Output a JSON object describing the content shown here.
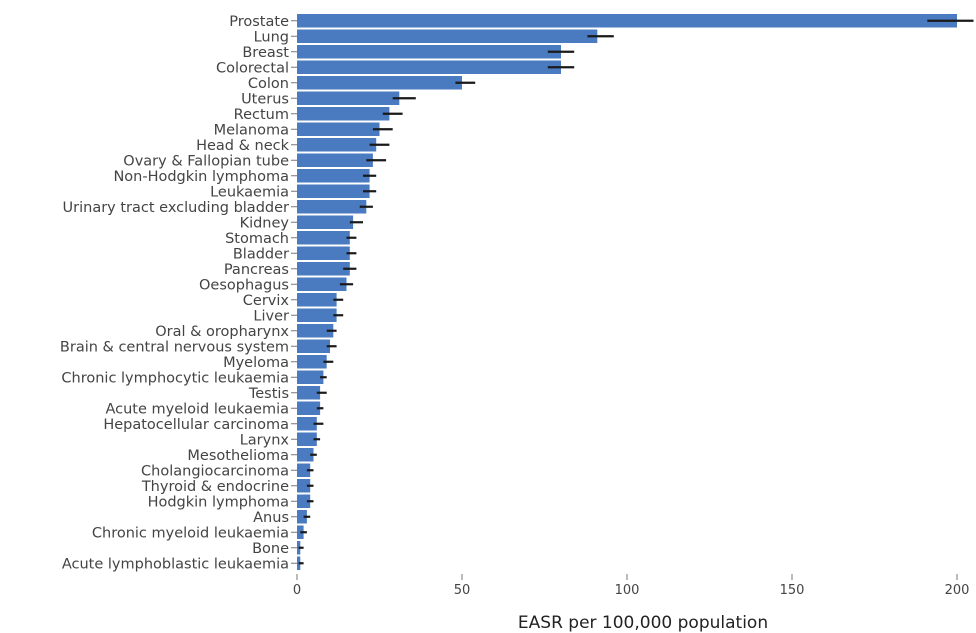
{
  "chart_data": {
    "type": "bar",
    "orientation": "horizontal",
    "title": "",
    "xlabel": "EASR per 100,000 population",
    "ylabel": "",
    "xlim": [
      0,
      200
    ],
    "xticks": [
      0,
      50,
      100,
      150,
      200
    ],
    "grid": false,
    "bar_color": "#4a7ac0",
    "error_bar_color": "#1a1a1a",
    "categories": [
      "Prostate",
      "Lung",
      "Breast",
      "Colorectal",
      "Colon",
      "Uterus",
      "Rectum",
      "Melanoma",
      "Head & neck",
      "Ovary & Fallopian tube",
      "Non-Hodgkin lymphoma",
      "Leukaemia",
      "Urinary tract excluding bladder",
      "Kidney",
      "Stomach",
      "Bladder",
      "Pancreas",
      "Oesophagus",
      "Cervix",
      "Liver",
      "Oral & oropharynx",
      "Brain & central nervous system",
      "Myeloma",
      "Chronic lymphocytic leukaemia",
      "Testis",
      "Acute myeloid leukaemia",
      "Hepatocellular carcinoma",
      "Larynx",
      "Mesothelioma",
      "Cholangiocarcinoma",
      "Thyroid & endocrine",
      "Hodgkin lymphoma",
      "Anus",
      "Chronic myeloid leukaemia",
      "Bone",
      "Acute lymphoblastic leukaemia"
    ],
    "values": [
      200,
      91,
      80,
      80,
      50,
      31,
      28,
      25,
      24,
      23,
      22,
      22,
      21,
      17,
      16,
      16,
      16,
      15,
      12,
      12,
      11,
      10,
      9,
      8,
      7,
      7,
      6,
      6,
      5,
      4,
      4,
      4,
      3,
      2,
      1,
      1
    ],
    "error_low": [
      191,
      88,
      76,
      76,
      48,
      29,
      26,
      23,
      22,
      21,
      20,
      20,
      19,
      16,
      15,
      15,
      14,
      13,
      11,
      11,
      9,
      9,
      8,
      7,
      6,
      6,
      5,
      5,
      4,
      3,
      3,
      3,
      2,
      1,
      0.5,
      0.5
    ],
    "error_high": [
      205,
      96,
      84,
      84,
      54,
      36,
      32,
      29,
      28,
      27,
      24,
      24,
      23,
      20,
      18,
      18,
      18,
      17,
      14,
      14,
      12,
      12,
      11,
      9,
      9,
      8,
      8,
      7,
      6,
      5,
      5,
      5,
      4,
      3,
      2,
      2
    ]
  }
}
